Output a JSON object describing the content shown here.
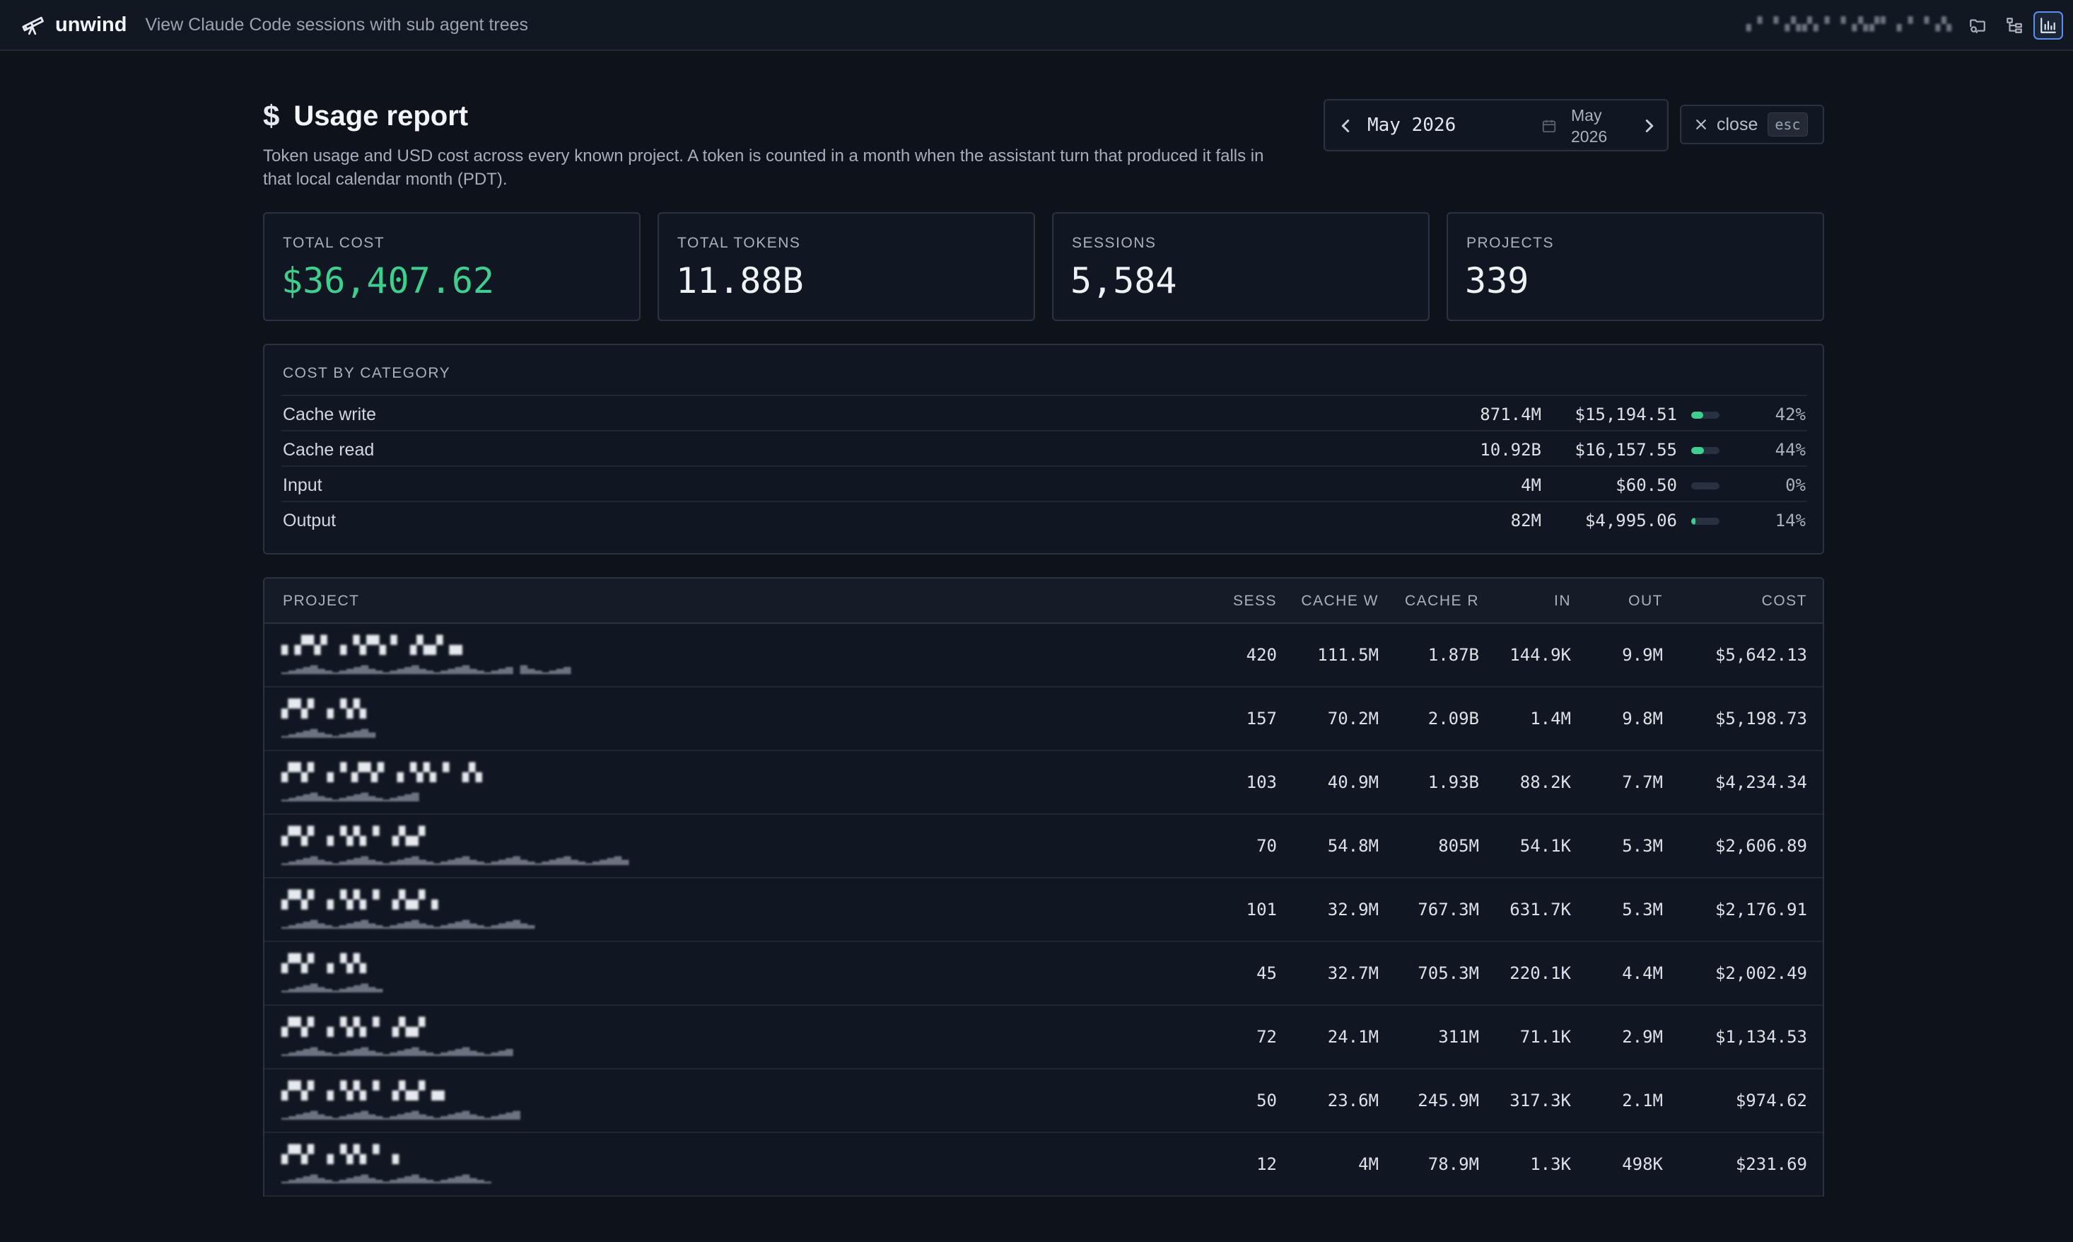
{
  "header": {
    "brand": "unwind",
    "tagline": "View Claude Code sessions with sub agent trees",
    "user_blurred": "▖▘▝▗▚▞▖▘▝▗▚▞▘ ▖▘▝▗▚"
  },
  "report": {
    "title": "Usage report",
    "description": "Token usage and USD cost across every known project. A token is counted in a month when the assistant turn that produced it falls in that local calendar month (PDT).",
    "month_value": "May  2026",
    "month_display": "May 2026",
    "close_label": "close",
    "esc_label": "esc"
  },
  "stats": [
    {
      "label": "TOTAL COST",
      "value": "$36,407.62"
    },
    {
      "label": "TOTAL TOKENS",
      "value": "11.88B"
    },
    {
      "label": "SESSIONS",
      "value": "5,584"
    },
    {
      "label": "PROJECTS",
      "value": "339"
    }
  ],
  "category": {
    "heading": "COST BY CATEGORY",
    "rows": [
      {
        "name": "Cache write",
        "tokens": "871.4M",
        "cost": "$15,194.51",
        "fraction": 0.42,
        "pct": "42%"
      },
      {
        "name": "Cache read",
        "tokens": "10.92B",
        "cost": "$16,157.55",
        "fraction": 0.44,
        "pct": "44%"
      },
      {
        "name": "Input",
        "tokens": "4M",
        "cost": "$60.50",
        "fraction": 0.0,
        "pct": "0%"
      },
      {
        "name": "Output",
        "tokens": "82M",
        "cost": "$4,995.06",
        "fraction": 0.14,
        "pct": "14%"
      }
    ]
  },
  "table": {
    "headers": {
      "project": "PROJECT",
      "sess": "SESS",
      "cache_w": "CACHE W",
      "cache_r": "CACHE R",
      "in": "IN",
      "out": "OUT",
      "cost": "COST"
    },
    "rows": [
      {
        "name": "▖▞▚▘▗▝▞▚ ▘▗▚▞▗▖",
        "path": "▁▂▃▄▅▃▂▁▂▃▄▅▃▂▁▂▃▄▅▃▂▁▂▃▄▅▃▂▁▂▃▄ ▅▃▂▁▂▃▄",
        "sess": "420",
        "cache_w": "111.5M",
        "cache_r": "1.87B",
        "in": "144.9K",
        "out": "9.9M",
        "cost": "$5,642.13"
      },
      {
        "name": "▞▚▘▗▝▞▖",
        "path": "▁▂▃▄▅▃▂▁▂▃▄▅▃",
        "sess": "157",
        "cache_w": "70.2M",
        "cache_r": "2.09B",
        "in": "1.4M",
        "out": "9.8M",
        "cost": "$5,198.73"
      },
      {
        "name": "▞▚▘▗▝ ▞▚▘▗▝▞▖▘▗▚",
        "path": "▁▂▃▄▅▃▂▁▂▃▄▅▃▂▁▂▃▄▅",
        "sess": "103",
        "cache_w": "40.9M",
        "cache_r": "1.93B",
        "in": "88.2K",
        "out": "7.7M",
        "cost": "$4,234.34"
      },
      {
        "name": "▞▚▘▗▝▞▖▘▗▚▞",
        "path": "▁▂▃▄▅▃▂▁▂▃▄▅▃▂▁▂▃▄▅▃▂▁▂▃▄▅▃▂▁▂▃▄▅▃▂▁▂▃▄▅▃▂▁▂▃▄▅▃",
        "sess": "70",
        "cache_w": "54.8M",
        "cache_r": "805M",
        "in": "54.1K",
        "out": "5.3M",
        "cost": "$2,606.89"
      },
      {
        "name": "▞▚▘▗▝▞▖▘▗▚▞▗",
        "path": "▁▂▃▄▅▃▂▁▂▃▄▅▃▂▁▂▃▄▅▃▂▁▂▃▄▅▃▂▁▂▃▄▅▃▂",
        "sess": "101",
        "cache_w": "32.9M",
        "cache_r": "767.3M",
        "in": "631.7K",
        "out": "5.3M",
        "cost": "$2,176.91"
      },
      {
        "name": "▞▚▘▗▝▞▖",
        "path": "▁▂▃▄▅▃▂▁▂▃▄▅▃▂",
        "sess": "45",
        "cache_w": "32.7M",
        "cache_r": "705.3M",
        "in": "220.1K",
        "out": "4.4M",
        "cost": "$2,002.49"
      },
      {
        "name": "▞▚▘▗▝▞▖▘▗▚▞",
        "path": "▁▂▃▄▅▃▂▁▂▃▄▅▃▂▁▂▃▄▅▃▂▁▂▃▄▅▃▂▁▂▃▄",
        "sess": "72",
        "cache_w": "24.1M",
        "cache_r": "311M",
        "in": "71.1K",
        "out": "2.9M",
        "cost": "$1,134.53"
      },
      {
        "name": "▞▚▘▗▝▞▖▘▗▚▞▗▖",
        "path": "▁▂▃▄▅▃▂▁▂▃▄▅▃▂▁▂▃▄▅▃▂▁▂▃▄▅▃▂▁▂▃▄▅",
        "sess": "50",
        "cache_w": "23.6M",
        "cache_r": "245.9M",
        "in": "317.3K",
        "out": "2.1M",
        "cost": "$974.62"
      },
      {
        "name": "▞▚▘▗▝▞▖▘▗",
        "path": "▁▂▃▄▅▃▂▁▂▃▄▅▃▂▁▂▃▄▅▃▂▁▂▃▄▅▃▂▁",
        "sess": "12",
        "cache_w": "4M",
        "cache_r": "78.9M",
        "in": "1.3K",
        "out": "498K",
        "cost": "$231.69"
      }
    ]
  },
  "colors": {
    "accent_green": "#3ecf8e",
    "active_blue": "#5b8def"
  },
  "icons": [
    "telescope-icon",
    "dollar-icon",
    "chevron-left-icon",
    "calendar-icon",
    "chevron-right-icon",
    "close-icon",
    "folder-search-icon",
    "tree-icon",
    "bar-chart-icon"
  ]
}
